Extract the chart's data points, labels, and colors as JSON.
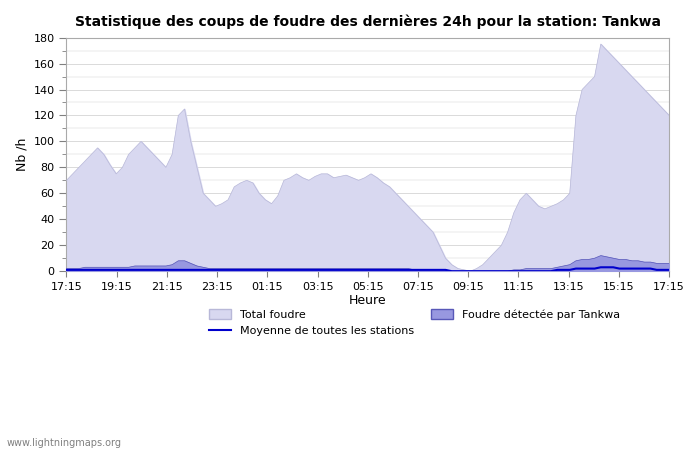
{
  "title": "Statistique des coups de foudre des dernières 24h pour la station: Tankwa",
  "xlabel": "Heure",
  "ylabel": "Nb /h",
  "ylim": [
    0,
    180
  ],
  "yticks": [
    0,
    20,
    40,
    60,
    80,
    100,
    120,
    140,
    160,
    180
  ],
  "xtick_labels": [
    "17:15",
    "19:15",
    "21:15",
    "23:15",
    "01:15",
    "03:15",
    "05:15",
    "07:15",
    "09:15",
    "11:15",
    "13:15",
    "15:15",
    "17:15"
  ],
  "background_color": "#ffffff",
  "plot_bg_color": "#ffffff",
  "grid_color": "#cccccc",
  "total_foudre_color": "#d8d8f0",
  "total_foudre_edge": "#b8b8d8",
  "tankwa_color": "#9898e0",
  "tankwa_edge": "#5858b8",
  "moyenne_color": "#0000cc",
  "watermark": "www.lightningmaps.org",
  "total_values": [
    70,
    75,
    80,
    85,
    90,
    95,
    90,
    82,
    75,
    80,
    90,
    95,
    100,
    95,
    90,
    85,
    80,
    90,
    120,
    125,
    100,
    80,
    60,
    55,
    50,
    52,
    55,
    65,
    68,
    70,
    68,
    60,
    55,
    52,
    58,
    70,
    72,
    75,
    72,
    70,
    73,
    75,
    75,
    72,
    73,
    74,
    72,
    70,
    72,
    75,
    72,
    68,
    65,
    60,
    55,
    50,
    45,
    40,
    35,
    30,
    20,
    10,
    5,
    2,
    1,
    0,
    2,
    5,
    10,
    15,
    20,
    30,
    45,
    55,
    60,
    55,
    50,
    48,
    50,
    52,
    55,
    60,
    120,
    140,
    145,
    150,
    175,
    170,
    165,
    160,
    155,
    150,
    145,
    140,
    135,
    130,
    125,
    120
  ],
  "tankwa_values": [
    2,
    2,
    2,
    3,
    3,
    3,
    3,
    3,
    3,
    3,
    3,
    4,
    4,
    4,
    4,
    4,
    4,
    5,
    8,
    8,
    6,
    4,
    3,
    2,
    2,
    2,
    2,
    2,
    2,
    2,
    2,
    2,
    2,
    2,
    2,
    2,
    2,
    2,
    2,
    2,
    2,
    2,
    2,
    2,
    2,
    2,
    2,
    2,
    2,
    2,
    2,
    2,
    2,
    2,
    2,
    2,
    1,
    1,
    1,
    1,
    1,
    1,
    0,
    0,
    0,
    0,
    0,
    0,
    0,
    0,
    0,
    0,
    1,
    1,
    2,
    2,
    2,
    2,
    2,
    3,
    4,
    5,
    8,
    9,
    9,
    10,
    12,
    11,
    10,
    9,
    9,
    8,
    8,
    7,
    7,
    6,
    6,
    6
  ],
  "moyenne_values": [
    1,
    1,
    1,
    1,
    1,
    1,
    1,
    1,
    1,
    1,
    1,
    1,
    1,
    1,
    1,
    1,
    1,
    1,
    1,
    1,
    1,
    1,
    1,
    1,
    1,
    1,
    1,
    1,
    1,
    1,
    1,
    1,
    1,
    1,
    1,
    1,
    1,
    1,
    1,
    1,
    1,
    1,
    1,
    1,
    1,
    1,
    1,
    1,
    1,
    1,
    1,
    1,
    1,
    1,
    1,
    1,
    1,
    1,
    1,
    1,
    1,
    1,
    0,
    0,
    0,
    0,
    0,
    0,
    0,
    0,
    0,
    0,
    0,
    0,
    0,
    0,
    0,
    0,
    0,
    1,
    1,
    1,
    2,
    2,
    2,
    2,
    3,
    3,
    3,
    2,
    2,
    2,
    2,
    2,
    2,
    1,
    1,
    1
  ]
}
